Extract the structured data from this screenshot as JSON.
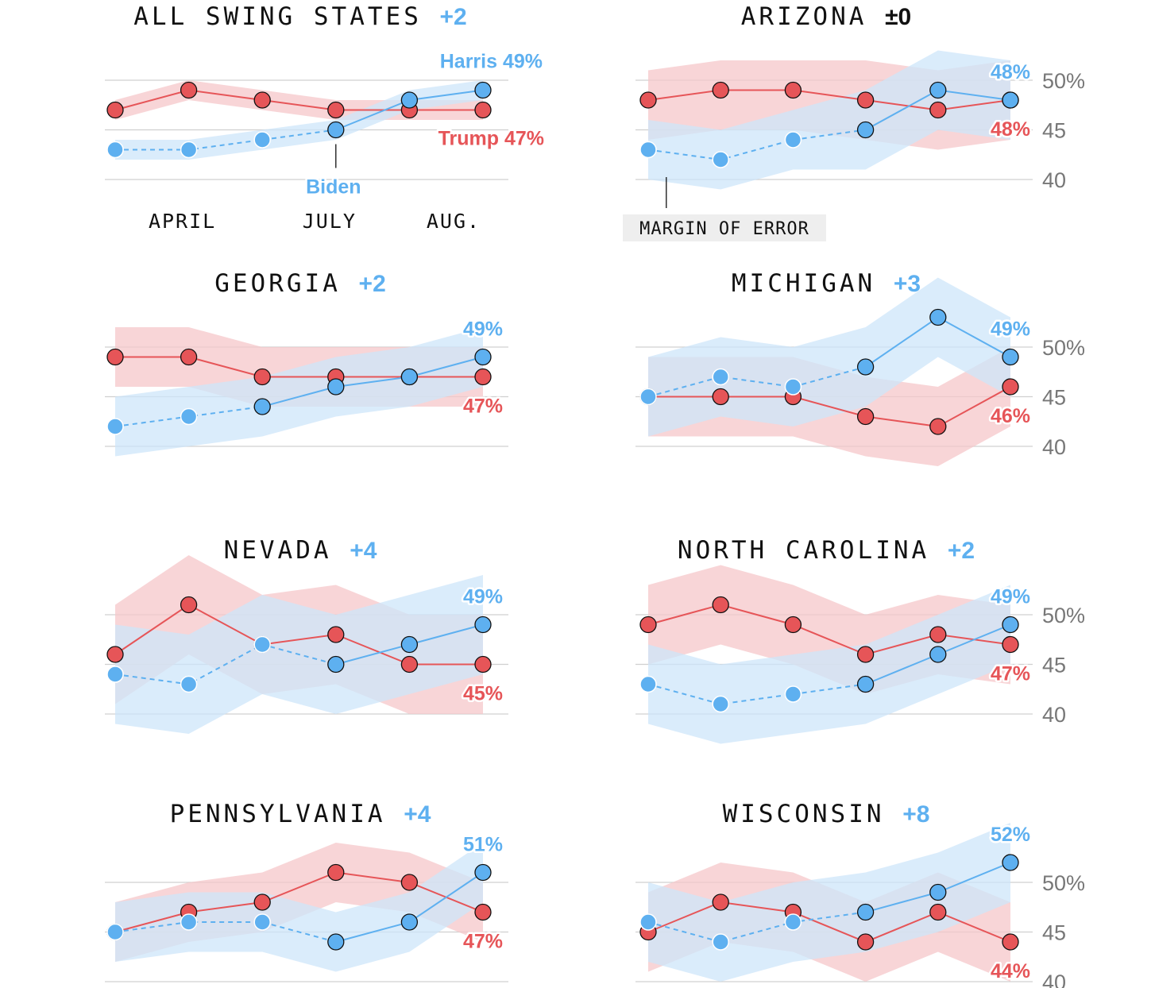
{
  "colors": {
    "harris": "#5eb0f0",
    "trump": "#e65558",
    "harris_band": "#cde6fa",
    "trump_band": "#f6c7ca",
    "gridline": "#d0d0d0",
    "tick_text": "#777777",
    "moe_box": "#eeeeee"
  },
  "chart_data": [
    {
      "type": "line",
      "title": "ALL SWING STATES",
      "lead_label": "+2",
      "lead_color": "harris",
      "x": [
        1,
        2,
        3,
        4,
        5,
        6
      ],
      "ylim": [
        40,
        50
      ],
      "yticks": [],
      "ytick_labels": [],
      "x_labels": [
        {
          "x": 2,
          "text": "APRIL"
        },
        {
          "x": 4,
          "text": "JULY"
        },
        {
          "x": 6,
          "text": "AUG."
        }
      ],
      "series": [
        {
          "name": "Harris",
          "color": "harris",
          "values": [
            43,
            43,
            44,
            45,
            48,
            49
          ],
          "low": [
            42,
            42,
            43,
            44,
            47,
            48
          ],
          "high": [
            44,
            44,
            45,
            46,
            49,
            50
          ],
          "dashed_until": 4,
          "end_label": "Harris 49%"
        },
        {
          "name": "Trump",
          "color": "trump",
          "values": [
            47,
            49,
            48,
            47,
            47,
            47
          ],
          "low": [
            46,
            48,
            47,
            46,
            46,
            46
          ],
          "high": [
            48,
            50,
            49,
            48,
            48,
            48
          ],
          "dashed_until": 1,
          "end_label": "Trump 47%"
        }
      ],
      "annotations": [
        {
          "text": "Biden",
          "color": "harris",
          "x": 4
        }
      ]
    },
    {
      "type": "line",
      "title": "ARIZONA",
      "lead_label": "±0",
      "lead_color": "text",
      "x": [
        1,
        2,
        3,
        4,
        5,
        6
      ],
      "ylim": [
        40,
        50
      ],
      "yticks": [
        50,
        45,
        40
      ],
      "ytick_labels": [
        "50%",
        "45",
        "40"
      ],
      "series": [
        {
          "name": "",
          "color": "harris",
          "values": [
            43,
            42,
            44,
            45,
            49,
            48
          ],
          "low": [
            40,
            39,
            41,
            41,
            45,
            44
          ],
          "high": [
            46,
            45,
            47,
            49,
            53,
            52
          ],
          "dashed_until": 4,
          "end_label": "48%"
        },
        {
          "name": "",
          "color": "trump",
          "values": [
            48,
            49,
            49,
            48,
            47,
            48
          ],
          "low": [
            44,
            45,
            45,
            44,
            43,
            44
          ],
          "high": [
            51,
            52,
            52,
            52,
            51,
            52
          ],
          "dashed_until": 1,
          "end_label": "48%"
        }
      ],
      "margin_note": "MARGIN OF ERROR"
    },
    {
      "type": "line",
      "title": "GEORGIA",
      "lead_label": "+2",
      "lead_color": "harris",
      "x": [
        1,
        2,
        3,
        4,
        5,
        6
      ],
      "ylim": [
        40,
        50
      ],
      "yticks": [],
      "ytick_labels": [],
      "series": [
        {
          "name": "",
          "color": "harris",
          "values": [
            42,
            43,
            44,
            46,
            47,
            49
          ],
          "low": [
            39,
            40,
            41,
            43,
            44,
            46
          ],
          "high": [
            45,
            46,
            47,
            49,
            50,
            52
          ],
          "dashed_until": 3,
          "end_label": "49%"
        },
        {
          "name": "",
          "color": "trump",
          "values": [
            49,
            49,
            47,
            47,
            47,
            47
          ],
          "low": [
            46,
            46,
            44,
            44,
            44,
            44
          ],
          "high": [
            52,
            52,
            50,
            50,
            50,
            50
          ],
          "dashed_until": 1,
          "end_label": "47%"
        }
      ]
    },
    {
      "type": "line",
      "title": "MICHIGAN",
      "lead_label": "+3",
      "lead_color": "harris",
      "x": [
        1,
        2,
        3,
        4,
        5,
        6
      ],
      "ylim": [
        40,
        50
      ],
      "yticks": [
        50,
        45,
        40
      ],
      "ytick_labels": [
        "50%",
        "45",
        "40"
      ],
      "series": [
        {
          "name": "",
          "color": "harris",
          "values": [
            45,
            47,
            46,
            48,
            53,
            49
          ],
          "low": [
            41,
            43,
            42,
            44,
            49,
            45
          ],
          "high": [
            49,
            51,
            50,
            52,
            57,
            53
          ],
          "dashed_until": 4,
          "end_label": "49%"
        },
        {
          "name": "",
          "color": "trump",
          "values": [
            45,
            45,
            45,
            43,
            42,
            46
          ],
          "low": [
            41,
            41,
            41,
            39,
            38,
            42
          ],
          "high": [
            49,
            49,
            49,
            47,
            46,
            50
          ],
          "dashed_until": 1,
          "end_label": "46%"
        }
      ]
    },
    {
      "type": "line",
      "title": "NEVADA",
      "lead_label": "+4",
      "lead_color": "harris",
      "x": [
        1,
        2,
        3,
        4,
        5,
        6
      ],
      "ylim": [
        40,
        50
      ],
      "yticks": [],
      "ytick_labels": [],
      "series": [
        {
          "name": "",
          "color": "harris",
          "values": [
            44,
            43,
            47,
            45,
            47,
            49
          ],
          "low": [
            39,
            38,
            42,
            40,
            42,
            44
          ],
          "high": [
            49,
            48,
            52,
            50,
            52,
            54
          ],
          "dashed_until": 4,
          "end_label": "49%"
        },
        {
          "name": "",
          "color": "trump",
          "values": [
            46,
            51,
            47,
            48,
            45,
            45
          ],
          "low": [
            41,
            46,
            42,
            43,
            40,
            40
          ],
          "high": [
            51,
            56,
            52,
            53,
            50,
            50
          ],
          "dashed_until": 1,
          "end_label": "45%"
        }
      ]
    },
    {
      "type": "line",
      "title": "NORTH CAROLINA",
      "lead_label": "+2",
      "lead_color": "harris",
      "x": [
        1,
        2,
        3,
        4,
        5,
        6
      ],
      "ylim": [
        40,
        50
      ],
      "yticks": [
        50,
        45,
        40
      ],
      "ytick_labels": [
        "50%",
        "45",
        "40"
      ],
      "series": [
        {
          "name": "",
          "color": "harris",
          "values": [
            43,
            41,
            42,
            43,
            46,
            49
          ],
          "low": [
            39,
            37,
            38,
            39,
            42,
            45
          ],
          "high": [
            47,
            45,
            46,
            47,
            50,
            53
          ],
          "dashed_until": 4,
          "end_label": "49%"
        },
        {
          "name": "",
          "color": "trump",
          "values": [
            49,
            51,
            49,
            46,
            48,
            47
          ],
          "low": [
            45,
            47,
            45,
            42,
            44,
            43
          ],
          "high": [
            53,
            55,
            53,
            50,
            52,
            51
          ],
          "dashed_until": 1,
          "end_label": "47%"
        }
      ]
    },
    {
      "type": "line",
      "title": "PENNSYLVANIA",
      "lead_label": "+4",
      "lead_color": "harris",
      "x": [
        1,
        2,
        3,
        4,
        5,
        6
      ],
      "ylim": [
        40,
        50
      ],
      "yticks": [],
      "ytick_labels": [],
      "series": [
        {
          "name": "",
          "color": "harris",
          "values": [
            45,
            46,
            46,
            44,
            46,
            51
          ],
          "low": [
            42,
            43,
            43,
            41,
            43,
            48
          ],
          "high": [
            48,
            49,
            49,
            47,
            49,
            54
          ],
          "dashed_until": 4,
          "end_label": "51%"
        },
        {
          "name": "",
          "color": "trump",
          "values": [
            45,
            47,
            48,
            51,
            50,
            47
          ],
          "low": [
            42,
            44,
            45,
            48,
            47,
            44
          ],
          "high": [
            48,
            50,
            51,
            54,
            53,
            50
          ],
          "dashed_until": 1,
          "end_label": "47%"
        }
      ]
    },
    {
      "type": "line",
      "title": "WISCONSIN",
      "lead_label": "+8",
      "lead_color": "harris",
      "x": [
        1,
        2,
        3,
        4,
        5,
        6
      ],
      "ylim": [
        40,
        50
      ],
      "yticks": [
        50,
        45,
        40
      ],
      "ytick_labels": [
        "50%",
        "45",
        "40"
      ],
      "series": [
        {
          "name": "",
          "color": "harris",
          "values": [
            46,
            44,
            46,
            47,
            49,
            52
          ],
          "low": [
            42,
            40,
            42,
            43,
            45,
            48
          ],
          "high": [
            50,
            48,
            50,
            51,
            53,
            56
          ],
          "dashed_until": 4,
          "end_label": "52%"
        },
        {
          "name": "",
          "color": "trump",
          "values": [
            45,
            48,
            47,
            44,
            47,
            44
          ],
          "low": [
            41,
            44,
            43,
            40,
            43,
            40
          ],
          "high": [
            49,
            52,
            51,
            48,
            51,
            48
          ],
          "dashed_until": 1,
          "end_label": "44%"
        }
      ]
    }
  ]
}
